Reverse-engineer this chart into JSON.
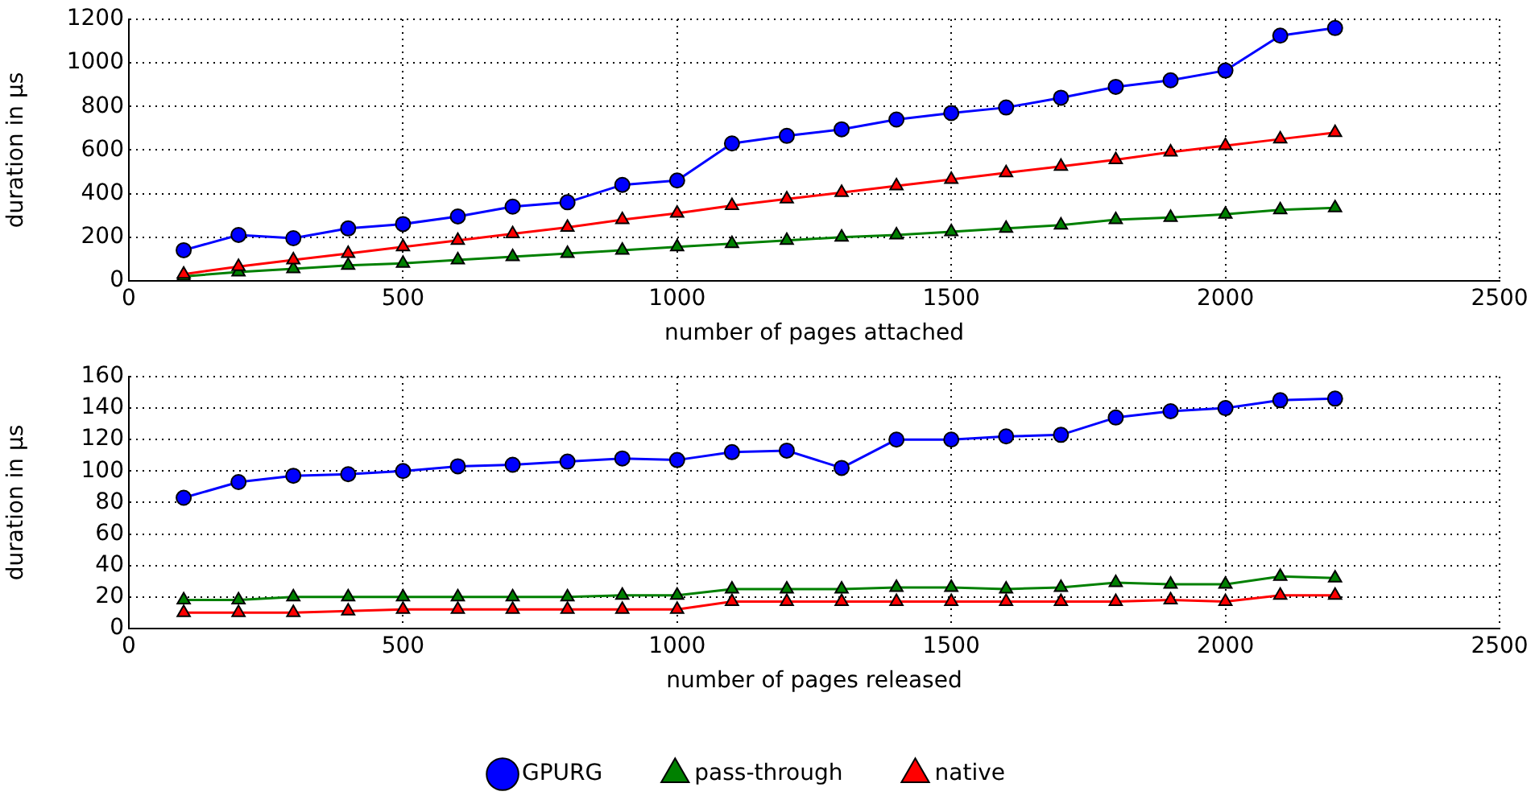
{
  "chart_data": [
    {
      "type": "line",
      "xlabel": "number of pages attached",
      "ylabel": "duration in µs",
      "xlim": [
        0,
        2500
      ],
      "xticks": [
        0,
        500,
        1000,
        1500,
        2000,
        2500
      ],
      "ylim": [
        0,
        1200
      ],
      "yticks": [
        0,
        200,
        400,
        600,
        800,
        1000,
        1200
      ],
      "grid": true,
      "legend": false,
      "x": [
        100,
        200,
        300,
        400,
        500,
        600,
        700,
        800,
        900,
        1000,
        1100,
        1200,
        1300,
        1400,
        1500,
        1600,
        1700,
        1800,
        1900,
        2000,
        2100,
        2200
      ],
      "series": [
        {
          "color": "#0000ff",
          "marker": "circle",
          "values": [
            140,
            210,
            195,
            240,
            260,
            295,
            340,
            360,
            440,
            460,
            630,
            665,
            695,
            740,
            770,
            795,
            840,
            890,
            920,
            965,
            1125,
            1160
          ]
        },
        {
          "color": "#008000",
          "marker": "triangle",
          "values": [
            20,
            40,
            55,
            70,
            80,
            95,
            110,
            125,
            140,
            155,
            170,
            185,
            200,
            210,
            225,
            240,
            255,
            280,
            290,
            305,
            325,
            335
          ]
        },
        {
          "color": "#ff0000",
          "marker": "triangle",
          "values": [
            30,
            65,
            95,
            125,
            155,
            185,
            215,
            245,
            280,
            310,
            345,
            375,
            405,
            435,
            465,
            495,
            525,
            555,
            590,
            620,
            650,
            680
          ]
        }
      ]
    },
    {
      "type": "line",
      "xlabel": "number of pages released",
      "ylabel": "duration in µs",
      "xlim": [
        0,
        2500
      ],
      "xticks": [
        0,
        500,
        1000,
        1500,
        2000,
        2500
      ],
      "ylim": [
        0,
        160
      ],
      "yticks": [
        0,
        20,
        40,
        60,
        80,
        100,
        120,
        140,
        160
      ],
      "grid": true,
      "legend": "bottom",
      "x": [
        100,
        200,
        300,
        400,
        500,
        600,
        700,
        800,
        900,
        1000,
        1100,
        1200,
        1300,
        1400,
        1500,
        1600,
        1700,
        1800,
        1900,
        2000,
        2100,
        2200
      ],
      "series": [
        {
          "name": "GPURG",
          "color": "#0000ff",
          "marker": "circle",
          "values": [
            83,
            93,
            97,
            98,
            100,
            103,
            104,
            106,
            108,
            107,
            112,
            113,
            102,
            120,
            120,
            122,
            123,
            134,
            138,
            140,
            145,
            146
          ]
        },
        {
          "name": "pass-through",
          "color": "#008000",
          "marker": "triangle",
          "values": [
            18,
            18,
            20,
            20,
            20,
            20,
            20,
            20,
            21,
            21,
            25,
            25,
            25,
            26,
            26,
            25,
            26,
            29,
            28,
            28,
            33,
            32
          ]
        },
        {
          "name": "native",
          "color": "#ff0000",
          "marker": "triangle",
          "values": [
            10,
            10,
            10,
            11,
            12,
            12,
            12,
            12,
            12,
            12,
            17,
            17,
            17,
            17,
            17,
            17,
            17,
            17,
            18,
            17,
            21,
            21
          ]
        }
      ]
    }
  ]
}
